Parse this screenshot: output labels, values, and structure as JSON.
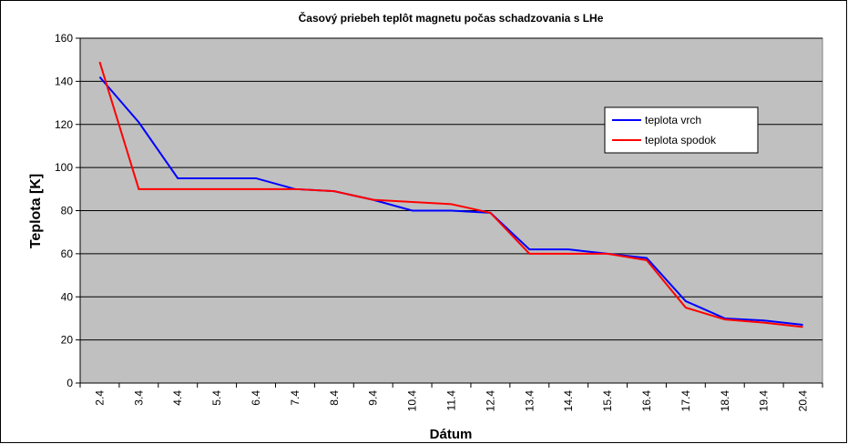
{
  "chart_data": {
    "type": "line",
    "title": "Časový priebeh teplôt magnetu počas schadzovania s LHe",
    "x_label": "Dátum",
    "y_label": "Teplota [K]",
    "categories": [
      "2.4",
      "3.4",
      "4.4",
      "5.4",
      "6.4",
      "7.4",
      "8.4",
      "9.4",
      "10.4",
      "11.4",
      "12.4",
      "13.4",
      "14.4",
      "15.4",
      "16.4",
      "17.4",
      "18.4",
      "19.4",
      "20.4"
    ],
    "series": [
      {
        "name": "teplota vrch",
        "color": "#0000ff",
        "values": [
          142,
          121,
          95,
          95,
          95,
          90,
          89,
          85,
          80,
          80,
          79,
          62,
          62,
          60,
          58,
          38,
          30,
          29,
          27
        ]
      },
      {
        "name": "teplota spodok",
        "color": "#ff0000",
        "values": [
          149,
          90,
          90,
          90,
          90,
          90,
          89,
          85,
          84,
          83,
          79,
          60,
          60,
          60,
          57,
          35,
          29.5,
          28,
          26
        ]
      }
    ],
    "ylim": [
      0,
      160
    ],
    "yticks": [
      0,
      20,
      40,
      60,
      80,
      100,
      120,
      140,
      160
    ],
    "grid": true
  }
}
